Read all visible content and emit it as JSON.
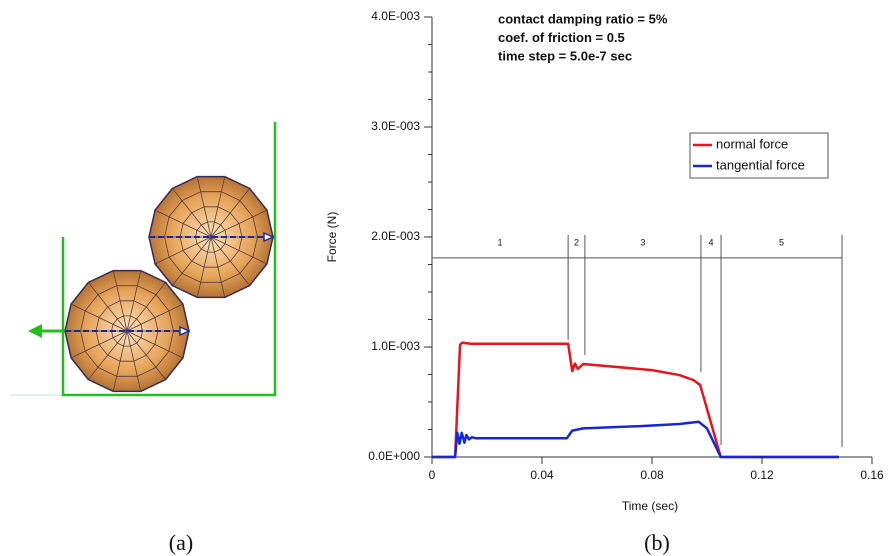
{
  "chart_data": {
    "type": "line",
    "annotations": [
      "contact damping ratio = 5%",
      "coef. of friction = 0.5",
      "time step = 5.0e-7 sec"
    ],
    "xlabel": "Time (sec)",
    "ylabel": "Force (N)",
    "xlim": [
      0,
      0.16
    ],
    "xticks": [
      0,
      0.04,
      0.08,
      0.12,
      0.16
    ],
    "ylim": [
      0,
      0.004
    ],
    "yticks": [
      {
        "value": 0,
        "label": "0.0E+000"
      },
      {
        "value": 0.001,
        "label": "1.0E-003"
      },
      {
        "value": 0.002,
        "label": "2.0E-003"
      },
      {
        "value": 0.003,
        "label": "3.0E-003"
      },
      {
        "value": 0.004,
        "label": "4.0E-003"
      }
    ],
    "yminorticks": [
      0.00025,
      0.0005,
      0.00075,
      0.00125,
      0.0015,
      0.00175,
      0.00225,
      0.0025,
      0.00275,
      0.00325,
      0.0035,
      0.00375
    ],
    "legend": "upper right",
    "series": [
      {
        "name": "normal force",
        "color": "#e8141c",
        "x": [
          0,
          0.0084,
          0.0102,
          0.011,
          0.014,
          0.0495,
          0.051,
          0.052,
          0.053,
          0.055,
          0.08,
          0.09,
          0.095,
          0.0975,
          0.105,
          0.148
        ],
        "values": [
          0,
          0,
          0.00102,
          0.00104,
          0.00103,
          0.00103,
          0.00078,
          0.00085,
          0.0008,
          0.000845,
          0.00079,
          0.000745,
          0.0007,
          0.000655,
          0,
          0
        ]
      },
      {
        "name": "tangential force",
        "color": "#1428d8",
        "x": [
          0,
          0.0084,
          0.0092,
          0.01,
          0.0108,
          0.0118,
          0.0125,
          0.0135,
          0.0145,
          0.016,
          0.049,
          0.051,
          0.055,
          0.075,
          0.09,
          0.097,
          0.1,
          0.105,
          0.148
        ],
        "values": [
          0,
          0,
          0.00022,
          0.00012,
          0.00022,
          0.00013,
          0.0002,
          0.00016,
          0.00018,
          0.00017,
          0.00017,
          0.00024,
          0.00026,
          0.00028,
          0.0003,
          0.00032,
          0.00026,
          0,
          0
        ]
      }
    ],
    "phases": {
      "labels": [
        "1",
        "2",
        "3",
        "4",
        "5"
      ],
      "boundaries": [
        0,
        0.0495,
        0.0556,
        0.0978,
        0.1051,
        0.1491
      ],
      "level": 0.00181
    }
  },
  "captions": {
    "a": "(a)",
    "b": "(b)"
  }
}
